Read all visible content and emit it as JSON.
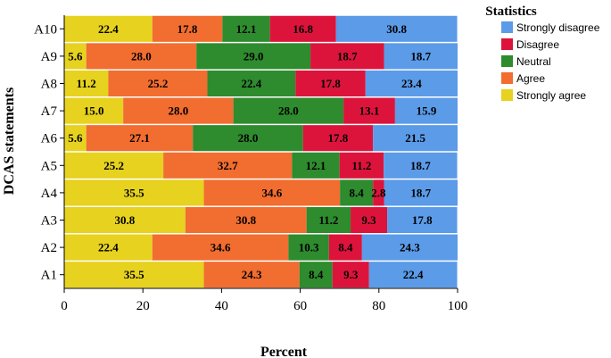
{
  "chart_data": {
    "type": "bar",
    "orientation": "horizontal",
    "stacked": true,
    "xlabel": "Percent",
    "ylabel": "DCAS statements",
    "xlim": [
      0,
      100
    ],
    "xticks": [
      0,
      20,
      40,
      60,
      80,
      100
    ],
    "grid": false,
    "legend_position": "right",
    "legend_title": "Statistics",
    "legend_order": [
      "Strongly disagree",
      "Disagree",
      "Neutral",
      "Agree",
      "Strongly agree"
    ],
    "categories": [
      "A10",
      "A9",
      "A8",
      "A7",
      "A6",
      "A5",
      "A4",
      "A3",
      "A2",
      "A1"
    ],
    "series": [
      {
        "name": "Strongly agree",
        "color": "#e6d21f",
        "values": [
          22.4,
          5.6,
          11.2,
          15.0,
          5.6,
          25.2,
          35.5,
          30.8,
          22.4,
          35.5
        ]
      },
      {
        "name": "Agree",
        "color": "#f26d30",
        "values": [
          17.8,
          28.0,
          25.2,
          28.0,
          27.1,
          32.7,
          34.6,
          30.8,
          34.6,
          24.3
        ]
      },
      {
        "name": "Neutral",
        "color": "#2e8b2e",
        "values": [
          12.1,
          29.0,
          22.4,
          28.0,
          28.0,
          12.1,
          8.4,
          11.2,
          10.3,
          8.4
        ]
      },
      {
        "name": "Disagree",
        "color": "#dc143c",
        "values": [
          16.8,
          18.7,
          17.8,
          13.1,
          17.8,
          11.2,
          2.8,
          9.3,
          8.4,
          9.3
        ]
      },
      {
        "name": "Strongly disagree",
        "color": "#5b9be8",
        "values": [
          30.8,
          18.7,
          23.4,
          15.9,
          21.5,
          18.7,
          18.7,
          17.8,
          24.3,
          22.4
        ]
      }
    ]
  }
}
